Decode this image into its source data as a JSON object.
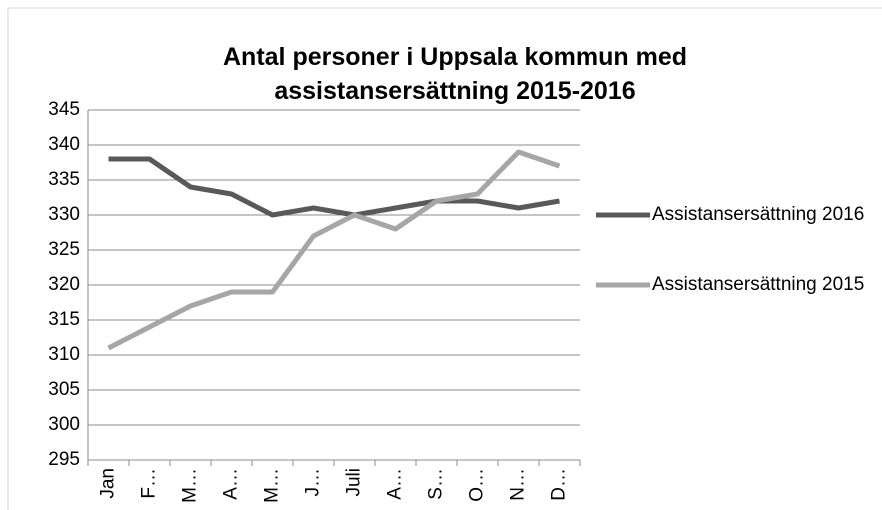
{
  "chart_data": {
    "type": "line",
    "title": "Antal personer i Uppsala kommun med assistansersättning 2015-2016",
    "categories": [
      "Jan",
      "F…",
      "M…",
      "A…",
      "M…",
      "J…",
      "Juli",
      "A…",
      "S…",
      "O…",
      "N…",
      "D…"
    ],
    "series": [
      {
        "name": "Assistansersättning 2016",
        "color": "#595959",
        "values": [
          338,
          338,
          334,
          333,
          330,
          331,
          330,
          331,
          332,
          332,
          331,
          332
        ]
      },
      {
        "name": "Assistansersättning 2015",
        "color": "#a6a6a6",
        "values": [
          311,
          314,
          317,
          319,
          319,
          327,
          330,
          328,
          332,
          333,
          339,
          337
        ]
      }
    ],
    "ylim": [
      295,
      345
    ],
    "yticks": [
      295,
      300,
      305,
      310,
      315,
      320,
      325,
      330,
      335,
      340,
      345
    ],
    "grid": true,
    "legend": "right"
  }
}
